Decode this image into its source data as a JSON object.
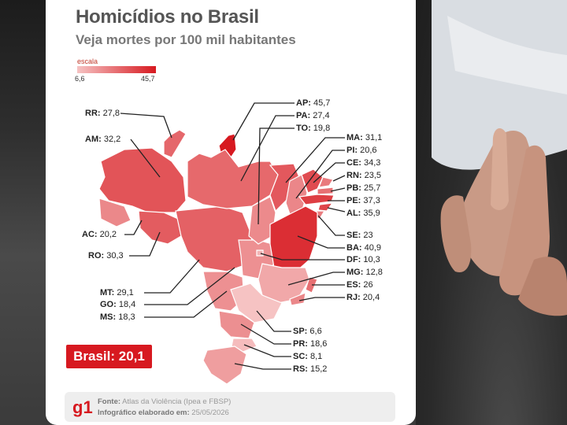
{
  "title": "Homicídios no Brasil",
  "subtitle": "Veja mortes por 100 mil habitantes",
  "scale": {
    "label": "escala",
    "min": "6,6",
    "max": "45,7",
    "color_low": "#f6c3c3",
    "color_high": "#d71920"
  },
  "states": [
    {
      "code": "RR",
      "text": "RR: 27,8",
      "value": 27.8
    },
    {
      "code": "AM",
      "text": "AM: 32,2",
      "value": 32.2
    },
    {
      "code": "AC",
      "text": "AC: 20,2",
      "value": 20.2
    },
    {
      "code": "RO",
      "text": "RO: 30,3",
      "value": 30.3
    },
    {
      "code": "MT",
      "text": "MT: 29,1",
      "value": 29.1
    },
    {
      "code": "GO",
      "text": "GO: 18,4",
      "value": 18.4
    },
    {
      "code": "MS",
      "text": "MS: 18,3",
      "value": 18.3
    },
    {
      "code": "AP",
      "text": "AP: 45,7",
      "value": 45.7
    },
    {
      "code": "PA",
      "text": "PA: 27,4",
      "value": 27.4
    },
    {
      "code": "TO",
      "text": "TO: 19,8",
      "value": 19.8
    },
    {
      "code": "MA",
      "text": "MA: 31,1",
      "value": 31.1
    },
    {
      "code": "PI",
      "text": "PI: 20,6",
      "value": 20.6
    },
    {
      "code": "CE",
      "text": "CE: 34,3",
      "value": 34.3
    },
    {
      "code": "RN",
      "text": "RN: 23,5",
      "value": 23.5
    },
    {
      "code": "PB",
      "text": "PB: 25,7",
      "value": 25.7
    },
    {
      "code": "PE",
      "text": "PE: 37,3",
      "value": 37.3
    },
    {
      "code": "AL",
      "text": "AL: 35,9",
      "value": 35.9
    },
    {
      "code": "SE",
      "text": "SE: 23",
      "value": 23
    },
    {
      "code": "BA",
      "text": "BA: 40,9",
      "value": 40.9
    },
    {
      "code": "DF",
      "text": "DF: 10,3",
      "value": 10.3
    },
    {
      "code": "MG",
      "text": "MG: 12,8",
      "value": 12.8
    },
    {
      "code": "ES",
      "text": "ES: 26",
      "value": 26
    },
    {
      "code": "RJ",
      "text": "RJ: 20,4",
      "value": 20.4
    },
    {
      "code": "SP",
      "text": "SP: 6,6",
      "value": 6.6
    },
    {
      "code": "PR",
      "text": "PR: 18,6",
      "value": 18.6
    },
    {
      "code": "SC",
      "text": "SC: 8,1",
      "value": 8.1
    },
    {
      "code": "RS",
      "text": "RS: 15,2",
      "value": 15.2
    }
  ],
  "total": "Brasil: 20,1",
  "footer": {
    "logo": "g1",
    "source_label": "Fonte:",
    "source": "Atlas da Violência (Ipea e FBSP)",
    "made_label": "Infográfico elaborado em:",
    "made": "25/05/2026"
  }
}
